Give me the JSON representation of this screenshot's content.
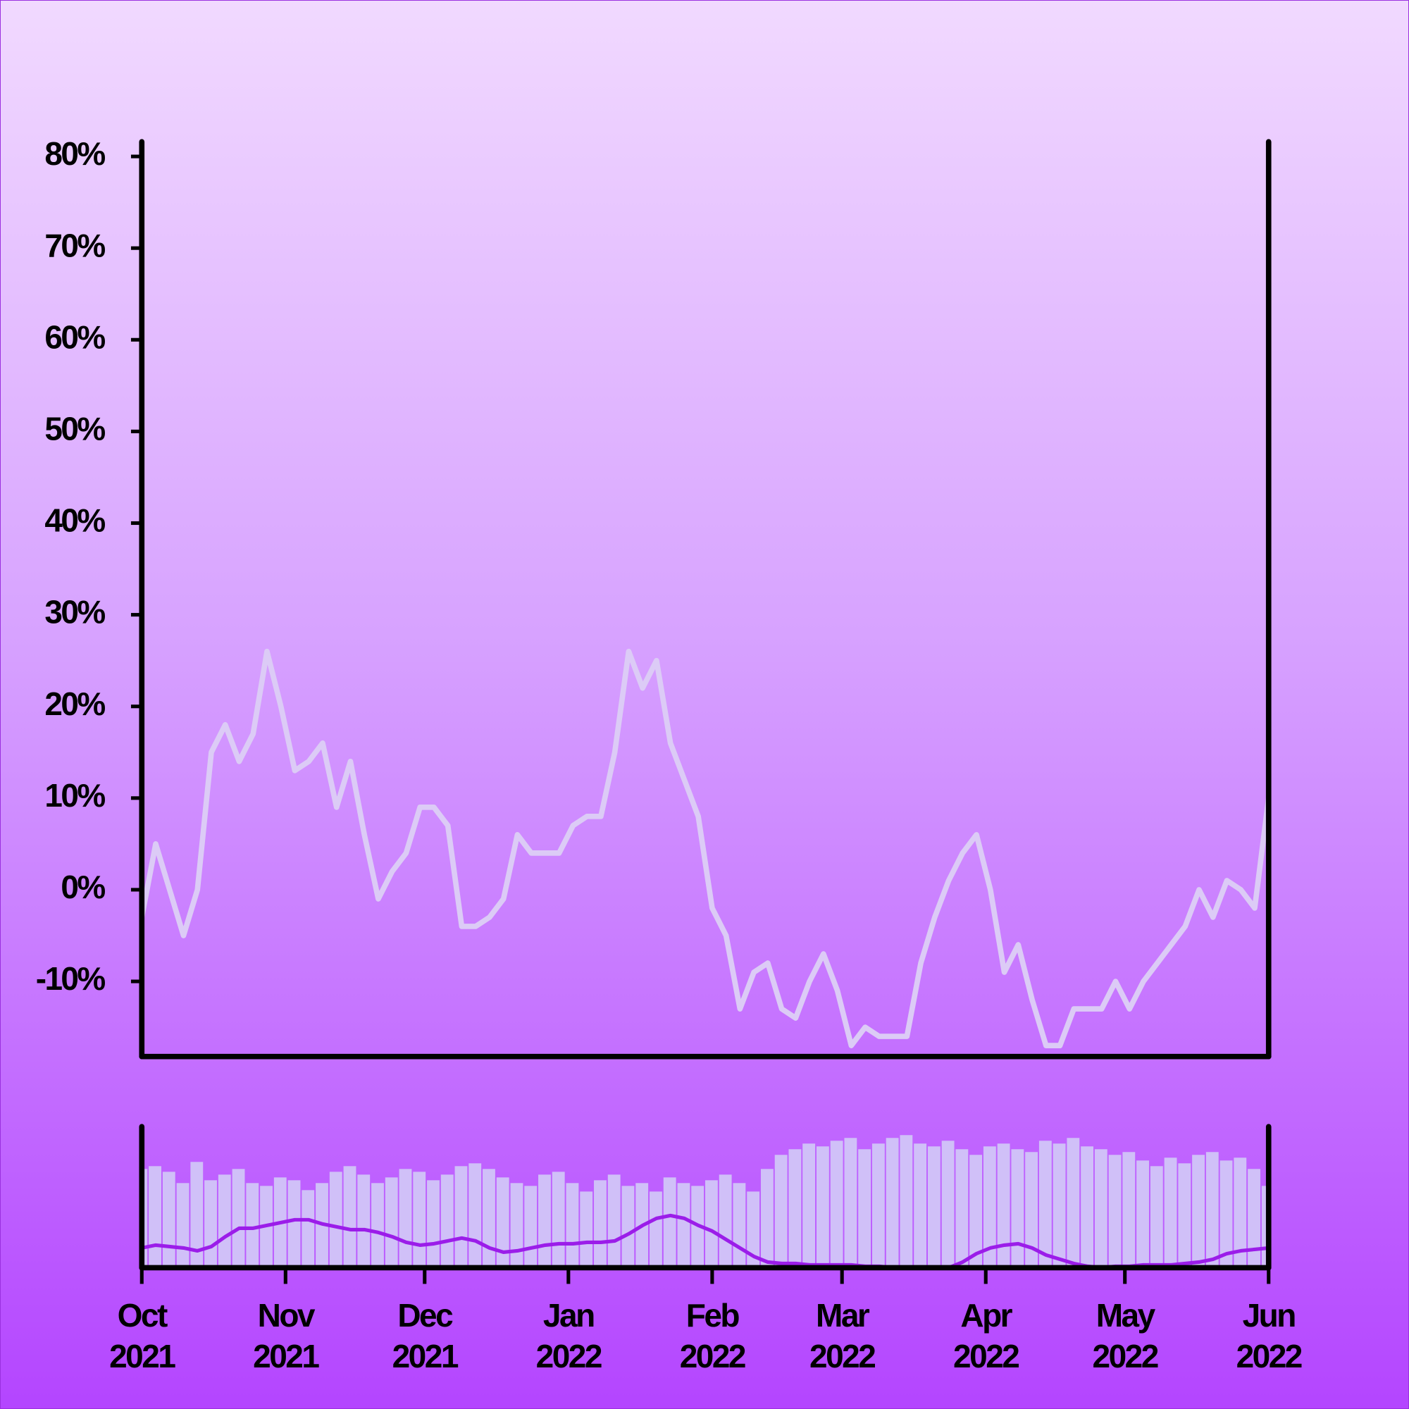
{
  "chart_data": [
    {
      "type": "line",
      "x": [
        0,
        3,
        6,
        9,
        12,
        15,
        18,
        21,
        24,
        27,
        30,
        33,
        36,
        39,
        42,
        45,
        48,
        51,
        54,
        57,
        60,
        63,
        66,
        69,
        72,
        75,
        78,
        81,
        84,
        87,
        90,
        93,
        96,
        99,
        102,
        105,
        108,
        111,
        114,
        117,
        120,
        123,
        126,
        129,
        132,
        135,
        138,
        141,
        144,
        147,
        150,
        153,
        156,
        159,
        162,
        165,
        168,
        171,
        174,
        177,
        180,
        183,
        186,
        189,
        192,
        195,
        198,
        201,
        204,
        207,
        210,
        213,
        216,
        219,
        222,
        225,
        228,
        231,
        234,
        237,
        240,
        243
      ],
      "series": [
        {
          "color": "#dccbf6",
          "values": [
            -3,
            5,
            0,
            -5,
            0,
            15,
            18,
            14,
            17,
            26,
            20,
            13,
            14,
            16,
            9,
            14,
            6,
            -1,
            2,
            4,
            9,
            9,
            7,
            -4,
            -4,
            -3,
            -1,
            6,
            4,
            4,
            4,
            7,
            8,
            8,
            15,
            26,
            22,
            25,
            16,
            12,
            8,
            -2,
            -5,
            -13,
            -9,
            -8,
            -13,
            -14,
            -10,
            -7,
            -11,
            -17,
            -15,
            -16,
            -16,
            -16,
            -8,
            -3,
            1,
            4,
            6,
            0,
            -9,
            -6,
            -12,
            -17,
            -17,
            -13,
            -13,
            -13,
            -10,
            -13,
            -10,
            -8,
            -6,
            -4,
            0,
            -3,
            1,
            0,
            -2,
            10
          ]
        }
      ],
      "xlim": [
        0,
        243
      ],
      "ylim": [
        -18.2,
        81.6
      ],
      "yticks": [
        {
          "value": -10,
          "label": "-10%"
        },
        {
          "value": 0,
          "label": "0%"
        },
        {
          "value": 10,
          "label": "10%"
        },
        {
          "value": 20,
          "label": "20%"
        },
        {
          "value": 30,
          "label": "30%"
        },
        {
          "value": 40,
          "label": "40%"
        },
        {
          "value": 50,
          "label": "50%"
        },
        {
          "value": 60,
          "label": "60%"
        },
        {
          "value": 70,
          "label": "70%"
        },
        {
          "value": 80,
          "label": "80%"
        }
      ],
      "grid": false
    },
    {
      "type": "bar",
      "x": [
        0,
        3,
        6,
        9,
        12,
        15,
        18,
        21,
        24,
        27,
        30,
        33,
        36,
        39,
        42,
        45,
        48,
        51,
        54,
        57,
        60,
        63,
        66,
        69,
        72,
        75,
        78,
        81,
        84,
        87,
        90,
        93,
        96,
        99,
        102,
        105,
        108,
        111,
        114,
        117,
        120,
        123,
        126,
        129,
        132,
        135,
        138,
        141,
        144,
        147,
        150,
        153,
        156,
        159,
        162,
        165,
        168,
        171,
        174,
        177,
        180,
        183,
        186,
        189,
        192,
        195,
        198,
        201,
        204,
        207,
        210,
        213,
        216,
        219,
        222,
        225,
        228,
        231,
        234,
        237,
        240,
        243
      ],
      "series": [
        {
          "type": "bar",
          "color": "#d0c0f8",
          "values": [
            70,
            72,
            68,
            60,
            75,
            62,
            66,
            70,
            60,
            58,
            64,
            62,
            55,
            60,
            68,
            72,
            66,
            60,
            64,
            70,
            68,
            62,
            66,
            72,
            74,
            70,
            64,
            60,
            58,
            66,
            68,
            60,
            54,
            62,
            66,
            58,
            60,
            54,
            64,
            60,
            58,
            62,
            66,
            60,
            54,
            70,
            80,
            84,
            88,
            86,
            90,
            92,
            84,
            88,
            92,
            94,
            88,
            86,
            90,
            84,
            80,
            86,
            88,
            84,
            82,
            90,
            88,
            92,
            86,
            84,
            80,
            82,
            76,
            72,
            78,
            74,
            80,
            82,
            76,
            78,
            70,
            58
          ]
        },
        {
          "type": "line",
          "color": "#9b1de9",
          "values": [
            14,
            16,
            15,
            14,
            12,
            15,
            22,
            28,
            28,
            30,
            32,
            34,
            34,
            31,
            29,
            27,
            27,
            25,
            22,
            18,
            16,
            17,
            19,
            21,
            19,
            14,
            11,
            12,
            14,
            16,
            17,
            17,
            18,
            18,
            19,
            24,
            30,
            35,
            37,
            35,
            30,
            26,
            20,
            14,
            8,
            4,
            3,
            3,
            2,
            2,
            2,
            2,
            1,
            1,
            0,
            0,
            0,
            0,
            0,
            4,
            10,
            14,
            16,
            17,
            14,
            9,
            6,
            3,
            1,
            0,
            1,
            1,
            2,
            2,
            2,
            3,
            4,
            6,
            10,
            12,
            13,
            14
          ]
        }
      ],
      "xlim": [
        0,
        243
      ],
      "ylim": [
        0,
        100
      ],
      "xticks": [
        {
          "value": 0,
          "label": "Oct\n2021"
        },
        {
          "value": 31,
          "label": "Nov\n2021"
        },
        {
          "value": 61,
          "label": "Dec\n2021"
        },
        {
          "value": 92,
          "label": "Jan\n2022"
        },
        {
          "value": 123,
          "label": "Feb\n2022"
        },
        {
          "value": 151,
          "label": "Mar\n2022"
        },
        {
          "value": 182,
          "label": "Apr\n2022"
        },
        {
          "value": 212,
          "label": "May\n2022"
        },
        {
          "value": 243,
          "label": "Jun\n2022"
        }
      ]
    }
  ]
}
